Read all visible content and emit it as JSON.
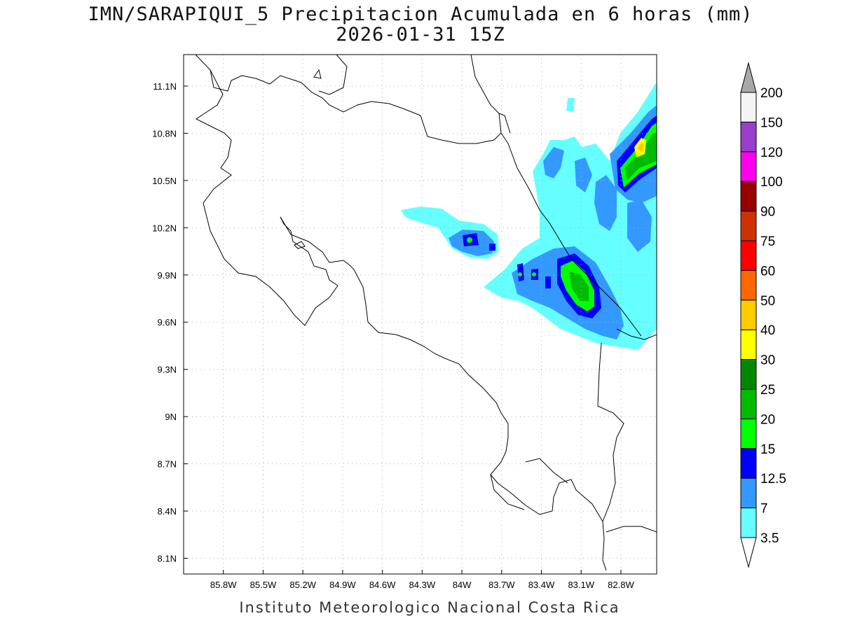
{
  "title": {
    "line1": "IMN/SARAPIQUI_5 Precipitacion Acumulada en 6 horas (mm)",
    "line2": "2026-01-31 15Z"
  },
  "credit": "Instituto Meteorologico Nacional Costa Rica",
  "map": {
    "lon_range": [
      -86.1,
      -82.53
    ],
    "lat_range": [
      8.0,
      11.3
    ],
    "lon_ticks": [
      "85.8W",
      "85.5W",
      "85.2W",
      "84.9W",
      "84.6W",
      "84.3W",
      "84W",
      "83.7W",
      "83.4W",
      "83.1W",
      "82.8W"
    ],
    "lat_ticks": [
      "11.1N",
      "10.8N",
      "10.5N",
      "10.2N",
      "9.9N",
      "9.6N",
      "9.3N",
      "9N",
      "8.7N",
      "8.4N",
      "8.1N"
    ]
  },
  "colorbar": {
    "labels": [
      "200",
      "150",
      "120",
      "100",
      "90",
      "75",
      "60",
      "50",
      "40",
      "30",
      "25",
      "20",
      "15",
      "12.5",
      "7",
      "3.5"
    ],
    "colors": [
      "#a8a8a8",
      "#f4f4f4",
      "#9a3ccc",
      "#ff00ee",
      "#990000",
      "#cc3300",
      "#ff0000",
      "#ff6600",
      "#ffcc00",
      "#ffff00",
      "#008800",
      "#00bb00",
      "#00ff00",
      "#0000ff",
      "#3399ff",
      "#66ffff",
      "#ffffff"
    ],
    "note_colors": "order from top triangle to bottom triangle"
  }
}
